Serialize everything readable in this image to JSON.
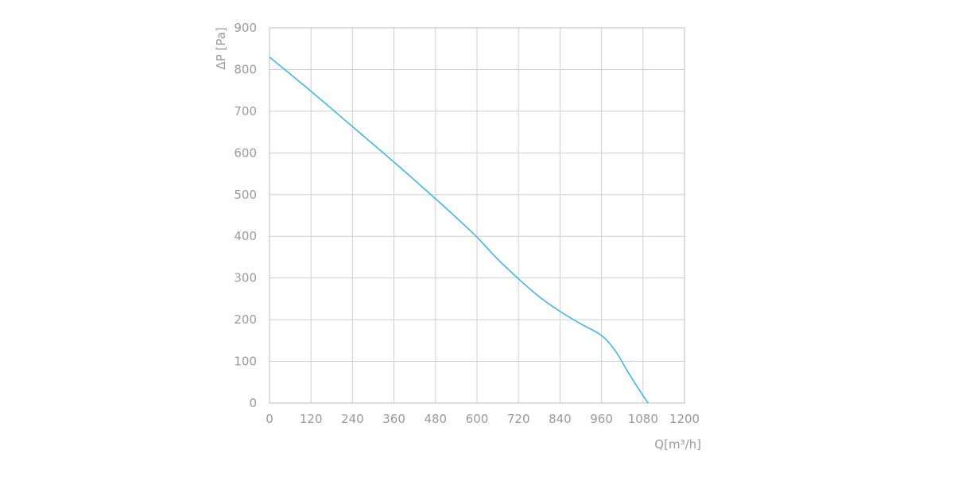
{
  "chart_data": {
    "type": "line",
    "xlabel": "Q[m³/h]",
    "ylabel": "ΔP [Pa]",
    "xlim": [
      0,
      1200
    ],
    "ylim": [
      0,
      900
    ],
    "x_ticks": [
      0,
      120,
      240,
      360,
      480,
      600,
      720,
      840,
      960,
      1080,
      1200
    ],
    "y_ticks": [
      0,
      100,
      200,
      300,
      400,
      500,
      600,
      700,
      800,
      900
    ],
    "x_tick_labels": [
      "0",
      "120",
      "240",
      "360",
      "480",
      "600",
      "720",
      "840",
      "960",
      "1080",
      "1200"
    ],
    "y_tick_labels": [
      "0",
      "100",
      "200",
      "300",
      "400",
      "500",
      "600",
      "700",
      "800",
      "900"
    ],
    "grid": true,
    "series": [
      {
        "color": "#3fb8e6",
        "x": [
          0,
          120,
          240,
          360,
          480,
          540,
          600,
          660,
          720,
          780,
          840,
          900,
          960,
          1000,
          1040,
          1080,
          1095
        ],
        "y": [
          830,
          748,
          663,
          578,
          490,
          445,
          398,
          345,
          298,
          255,
          220,
          190,
          162,
          125,
          70,
          18,
          0
        ]
      }
    ]
  }
}
